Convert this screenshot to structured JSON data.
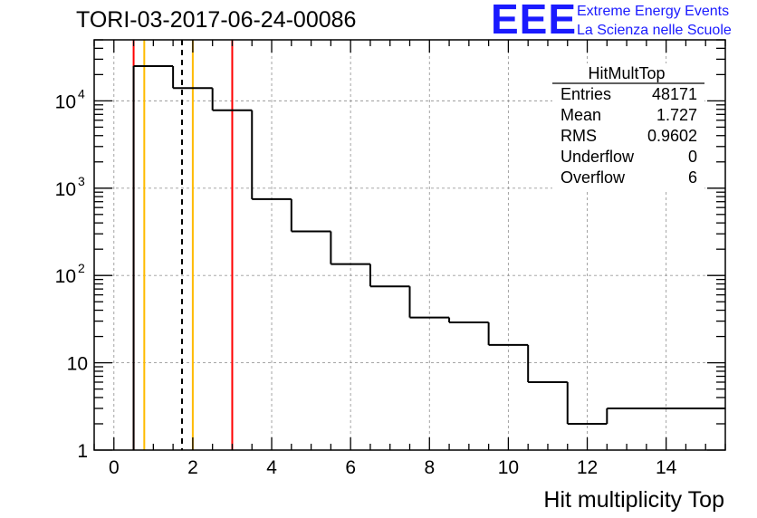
{
  "run_title": "TORI-03-2017-06-24-00086",
  "logo": {
    "mark": "EEE",
    "line1": "Extreme Energy Events",
    "line2": "La Scienza nelle Scuole",
    "color": "#1a1aff"
  },
  "stats": {
    "name": "HitMultTop",
    "rows": [
      {
        "label": "Entries",
        "value": "48171"
      },
      {
        "label": "Mean",
        "value": "1.727"
      },
      {
        "label": "RMS",
        "value": "0.9602"
      },
      {
        "label": "Underflow",
        "value": "0"
      },
      {
        "label": "Overflow",
        "value": "6"
      }
    ]
  },
  "chart_data": {
    "type": "histogram",
    "title": "TORI-03-2017-06-24-00086",
    "xlabel": "Hit multiplicity Top",
    "ylabel": "",
    "yscale": "log",
    "xlim": [
      -0.5,
      15.5
    ],
    "ylim": [
      1,
      50000
    ],
    "grid": true,
    "x_ticks": [
      0,
      2,
      4,
      6,
      8,
      10,
      12,
      14
    ],
    "y_ticks": [
      {
        "value": 1,
        "base": "1",
        "exp": ""
      },
      {
        "value": 10,
        "base": "10",
        "exp": ""
      },
      {
        "value": 100,
        "base": "10",
        "exp": "2"
      },
      {
        "value": 1000,
        "base": "10",
        "exp": "3"
      },
      {
        "value": 10000,
        "base": "10",
        "exp": "4"
      }
    ],
    "bin_edges": [
      0.5,
      1.5,
      2.5,
      3.5,
      4.5,
      5.5,
      6.5,
      7.5,
      8.5,
      9.5,
      10.5,
      11.5,
      12.5,
      15.5
    ],
    "counts": [
      25000,
      14000,
      7800,
      750,
      320,
      135,
      75,
      33,
      29,
      16,
      6,
      2,
      3
    ],
    "markers": [
      {
        "x": 0.5,
        "color": "#ff0000",
        "style": "solid"
      },
      {
        "x": 0.77,
        "color": "#ffbb00",
        "style": "solid"
      },
      {
        "x": 1.727,
        "color": "#000000",
        "style": "dashed"
      },
      {
        "x": 2.0,
        "color": "#ffbb00",
        "style": "solid"
      },
      {
        "x": 3.0,
        "color": "#ff0000",
        "style": "solid"
      }
    ]
  }
}
